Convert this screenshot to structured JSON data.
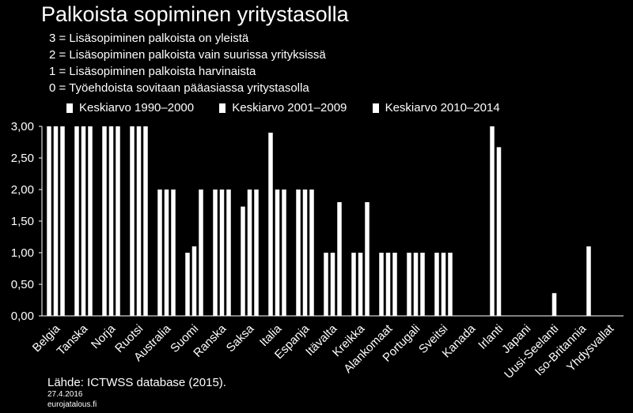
{
  "title": "Palkoista sopiminen yritystasolla",
  "notes": [
    "3 = Lisäsopiminen palkoista on yleistä",
    "2 = Lisäsopiminen palkoista vain suurissa yrityksissä",
    "1 = Lisäsopiminen palkoista harvinaista",
    "0 = Työehdoista sovitaan pääasiassa yritystasolla"
  ],
  "source": "Lähde: ICTWSS database (2015).",
  "date": "27.4.2016",
  "site": "eurojatalous.fi",
  "colors": {
    "background": "#000000",
    "bars": "#ffffff",
    "text": "#ffffff"
  },
  "chart_data": {
    "type": "bar",
    "categories": [
      "Belgia",
      "Tanska",
      "Norja",
      "Ruotsi",
      "Australia",
      "Suomi",
      "Ranska",
      "Saksa",
      "Italia",
      "Espanja",
      "Itävalta",
      "Kreikka",
      "Alankomaat",
      "Portugali",
      "Sveitsi",
      "Kanada",
      "Irlanti",
      "Japani",
      "Uusi-Seelanti",
      "Iso-Britannia",
      "Yhdysvallat"
    ],
    "series": [
      {
        "name": "Keskiarvo 1990–2000",
        "values": [
          3.0,
          3.0,
          3.0,
          3.0,
          2.0,
          1.0,
          2.0,
          1.73,
          2.9,
          2.0,
          1.0,
          1.0,
          1.0,
          1.0,
          1.0,
          0,
          3.0,
          0,
          0,
          0,
          0
        ]
      },
      {
        "name": "Keskiarvo 2001–2009",
        "values": [
          3.0,
          3.0,
          3.0,
          3.0,
          2.0,
          1.1,
          2.0,
          2.0,
          2.0,
          2.0,
          1.0,
          1.0,
          1.0,
          1.0,
          1.0,
          0,
          2.67,
          0,
          0.36,
          0,
          0
        ]
      },
      {
        "name": "Keskiarvo 2010–2014",
        "values": [
          3.0,
          3.0,
          3.0,
          3.0,
          2.0,
          2.0,
          2.0,
          2.0,
          2.0,
          2.0,
          1.8,
          1.8,
          1.0,
          1.0,
          1.0,
          0,
          null,
          0,
          0,
          1.1,
          0
        ]
      }
    ],
    "ylim": [
      0,
      3
    ],
    "yticks": [
      "0,00",
      "0,50",
      "1,00",
      "1,50",
      "2,00",
      "2,50",
      "3,00"
    ],
    "legend": "top",
    "grid": false
  }
}
